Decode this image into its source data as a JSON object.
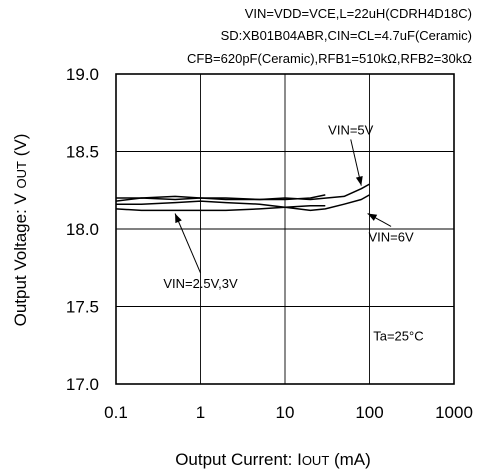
{
  "chart_data": {
    "type": "line",
    "header_lines": [
      "VIN=VDD=VCE,L=22uH(CDRH4D18C)",
      "SD:XB01B04ABR,CIN=CL=4.7uF(Ceramic)",
      "CFB=620pF(Ceramic),RFB1=510kΩ,RFB2=30kΩ"
    ],
    "xlabel": {
      "pre": "Output Current: I",
      "sub": "OUT",
      "post": " (mA)"
    },
    "ylabel": {
      "pre": "Output Voltage: V ",
      "sub": "OUT",
      "post": " (V)"
    },
    "x_scale": "log",
    "xlim": [
      0.1,
      1000
    ],
    "ylim": [
      17.0,
      19.0
    ],
    "x_ticks": [
      0.1,
      1,
      10,
      100,
      1000
    ],
    "x_tick_labels": [
      "0.1",
      "1",
      "10",
      "100",
      "1000"
    ],
    "y_ticks": [
      17.0,
      17.5,
      18.0,
      18.5,
      19.0
    ],
    "y_tick_labels": [
      "17.0",
      "17.5",
      "18.0",
      "18.5",
      "19.0"
    ],
    "grid": true,
    "legend": "none",
    "annotations": [
      {
        "text": "VIN=5V",
        "x": 60,
        "y": 18.61,
        "arrow_to_x": 80,
        "arrow_to_y": 18.28
      },
      {
        "text": "VIN=6V",
        "x": 180,
        "y": 17.92,
        "arrow_to_x": 95,
        "arrow_to_y": 18.1
      },
      {
        "text": "VIN=2.5V,3V",
        "x": 1.0,
        "y": 17.62,
        "arrow_to_x": 0.5,
        "arrow_to_y": 18.1
      },
      {
        "text": "Ta=25°C",
        "x": 220,
        "y": 17.28
      }
    ],
    "series": [
      {
        "values": [
          [
            0.1,
            18.2
          ],
          [
            0.2,
            18.2
          ],
          [
            0.5,
            18.21
          ],
          [
            1,
            18.2
          ],
          [
            2,
            18.2
          ],
          [
            5,
            18.19
          ],
          [
            10,
            18.19
          ],
          [
            20,
            18.2
          ],
          [
            30,
            18.22
          ]
        ]
      },
      {
        "values": [
          [
            0.1,
            18.18
          ],
          [
            0.2,
            18.2
          ],
          [
            0.5,
            18.19
          ],
          [
            1,
            18.2
          ],
          [
            2,
            18.19
          ],
          [
            5,
            18.19
          ],
          [
            10,
            18.2
          ],
          [
            20,
            18.19
          ],
          [
            50,
            18.21
          ],
          [
            80,
            18.26
          ],
          [
            100,
            18.29
          ]
        ]
      },
      {
        "values": [
          [
            0.1,
            18.16
          ],
          [
            0.2,
            18.16
          ],
          [
            0.5,
            18.17
          ],
          [
            1,
            18.18
          ],
          [
            2,
            18.17
          ],
          [
            5,
            18.16
          ],
          [
            10,
            18.14
          ],
          [
            20,
            18.12
          ],
          [
            30,
            18.13
          ],
          [
            50,
            18.16
          ],
          [
            80,
            18.19
          ],
          [
            100,
            18.22
          ]
        ]
      },
      {
        "values": [
          [
            0.1,
            18.13
          ],
          [
            0.2,
            18.12
          ],
          [
            0.5,
            18.12
          ],
          [
            1,
            18.12
          ],
          [
            2,
            18.12
          ],
          [
            5,
            18.13
          ],
          [
            10,
            18.14
          ],
          [
            20,
            18.15
          ],
          [
            30,
            18.15
          ]
        ]
      }
    ]
  }
}
